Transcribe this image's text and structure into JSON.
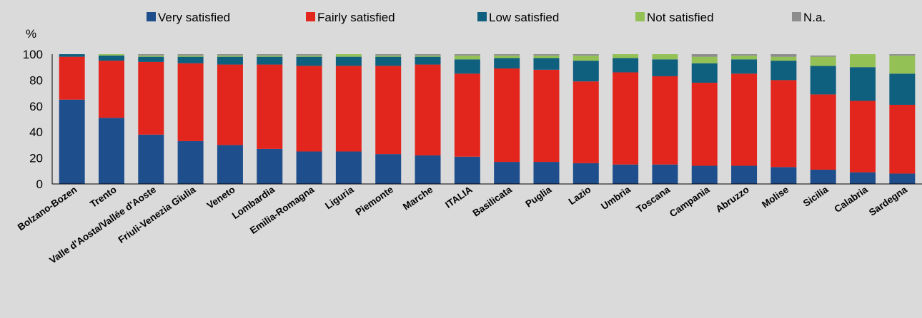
{
  "chart_data": {
    "type": "bar",
    "stacked": true,
    "y_unit_label": "%",
    "ylim": [
      0,
      100
    ],
    "yticks": [
      0,
      20,
      40,
      60,
      80,
      100
    ],
    "grid": false,
    "legend_position": "top",
    "categories": [
      "Bolzano-Bozen",
      "Trento",
      "Valle d'Aosta/Vallée d'Aoste",
      "Friuli-Venezia Giulia",
      "Veneto",
      "Lombardia",
      "Emilia-Romagna",
      "Liguria",
      "Piemonte",
      "Marche",
      "ITALIA",
      "Basilicata",
      "Puglia",
      "Lazio",
      "Umbria",
      "Toscana",
      "Campania",
      "Abruzzo",
      "Molise",
      "Sicilia",
      "Calabria",
      "Sardegna"
    ],
    "series": [
      {
        "name": "Very satisfied",
        "color": "#1f4e8c",
        "values": [
          65,
          51,
          38,
          33,
          30,
          27,
          25,
          25,
          23,
          22,
          21,
          17,
          17,
          16,
          15,
          15,
          14,
          14,
          13,
          11,
          9,
          8
        ]
      },
      {
        "name": "Fairly satisfied",
        "color": "#e3261d",
        "values": [
          33,
          44,
          56,
          60,
          62,
          65,
          66,
          66,
          68,
          70,
          64,
          72,
          71,
          63,
          71,
          68,
          64,
          71,
          67,
          58,
          55,
          53
        ]
      },
      {
        "name": "Low satisfied",
        "color": "#0f5f7f",
        "values": [
          2,
          4,
          4,
          5,
          6,
          6,
          7,
          7,
          7,
          6,
          11,
          8,
          9,
          16,
          11,
          13,
          15,
          11,
          15,
          22,
          26,
          24
        ]
      },
      {
        "name": "Not satisfied",
        "color": "#93c156",
        "values": [
          0,
          1,
          1,
          1,
          1,
          1,
          1,
          2,
          1,
          1,
          3,
          2,
          2,
          4,
          3,
          4,
          5,
          3,
          3,
          7,
          10,
          14
        ]
      },
      {
        "name": "N.a.",
        "color": "#8c8c8c",
        "values": [
          0,
          0,
          1,
          1,
          1,
          1,
          1,
          0,
          1,
          1,
          1,
          1,
          1,
          1,
          0,
          0,
          2,
          1,
          2,
          1,
          0,
          1
        ]
      }
    ]
  }
}
